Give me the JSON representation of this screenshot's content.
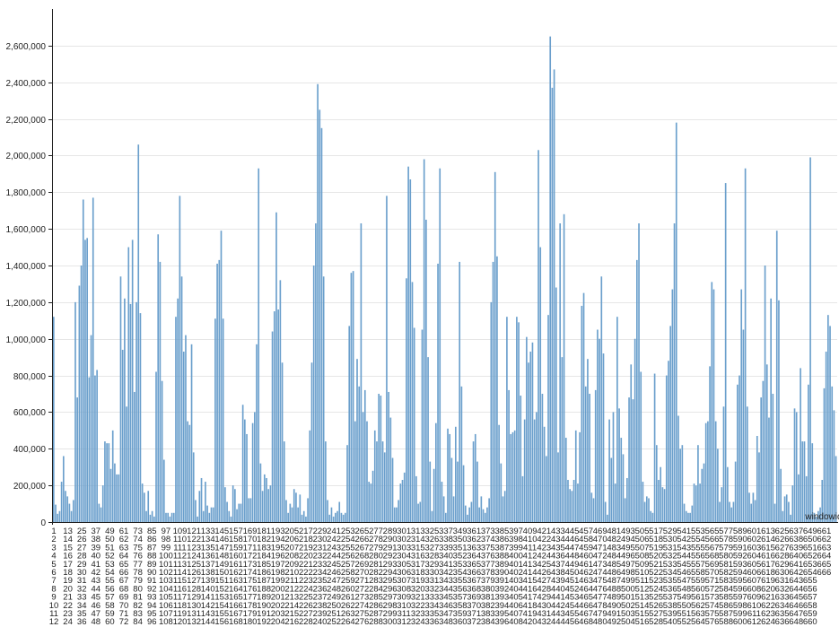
{
  "chart_data": {
    "type": "bar",
    "xlabel": "windowid",
    "ylabel": "",
    "title": "",
    "ylim": [
      0,
      2800000
    ],
    "yticks": [
      0,
      200000,
      400000,
      600000,
      800000,
      1000000,
      1200000,
      1400000,
      1600000,
      1800000,
      2000000,
      2200000,
      2400000,
      2600000
    ],
    "ytick_labels": [
      "0",
      "200,000",
      "400,000",
      "600,000",
      "800,000",
      "1,000,000",
      "1,200,000",
      "1,400,000",
      "1,600,000",
      "1,800,000",
      "2,000,000",
      "2,200,000",
      "2,400,000",
      "2,600,000"
    ],
    "grid": true,
    "bar_color": "#6a9fcc",
    "x_start": 1,
    "x_end": 666,
    "label_rows": 12,
    "values": [
      1120000,
      95000,
      45000,
      60000,
      220000,
      360000,
      170000,
      140000,
      100000,
      60000,
      120000,
      1200000,
      680000,
      1290000,
      1400000,
      1760000,
      1540000,
      1550000,
      790000,
      1020000,
      1770000,
      800000,
      830000,
      100000,
      80000,
      200000,
      440000,
      430000,
      430000,
      290000,
      500000,
      320000,
      260000,
      260000,
      1340000,
      940000,
      1220000,
      630000,
      1500000,
      1190000,
      1540000,
      710000,
      1200000,
      2060000,
      1140000,
      210000,
      160000,
      60000,
      170000,
      40000,
      60000,
      30000,
      820000,
      1570000,
      1420000,
      770000,
      340000,
      50000,
      50000,
      30000,
      50000,
      50000,
      1120000,
      1220000,
      1780000,
      1340000,
      930000,
      1020000,
      550000,
      530000,
      970000,
      380000,
      120000,
      30000,
      170000,
      240000,
      60000,
      220000,
      90000,
      50000,
      80000,
      80000,
      1110000,
      1410000,
      1430000,
      1590000,
      1110000,
      190000,
      110000,
      60000,
      30000,
      200000,
      180000,
      70000,
      100000,
      100000,
      640000,
      560000,
      480000,
      130000,
      130000,
      540000,
      600000,
      970000,
      1930000,
      320000,
      170000,
      260000,
      240000,
      180000,
      200000,
      1040000,
      1150000,
      1690000,
      1160000,
      1320000,
      870000,
      440000,
      120000,
      50000,
      100000,
      80000,
      180000,
      160000,
      80000,
      150000,
      40000,
      60000,
      30000,
      130000,
      500000,
      870000,
      1400000,
      1630000,
      2390000,
      2250000,
      2150000,
      1340000,
      440000,
      120000,
      40000,
      80000,
      30000,
      50000,
      60000,
      110000,
      50000,
      40000,
      50000,
      420000,
      1070000,
      1360000,
      1370000,
      550000,
      890000,
      740000,
      1630000,
      600000,
      720000,
      550000,
      220000,
      210000,
      280000,
      500000,
      440000,
      700000,
      690000,
      440000,
      380000,
      1780000,
      710000,
      570000,
      350000,
      80000,
      80000,
      120000,
      210000,
      230000,
      270000,
      1330000,
      1940000,
      1870000,
      1310000,
      1060000,
      250000,
      100000,
      110000,
      1050000,
      1980000,
      1650000,
      900000,
      330000,
      60000,
      290000,
      540000,
      1410000,
      1930000,
      220000,
      140000,
      50000,
      510000,
      480000,
      350000,
      140000,
      520000,
      330000,
      1420000,
      740000,
      310000,
      90000,
      40000,
      80000,
      110000,
      440000,
      480000,
      330000,
      80000,
      140000,
      70000,
      50000,
      80000,
      130000,
      1200000,
      1420000,
      1910000,
      1450000,
      530000,
      320000,
      140000,
      170000,
      1120000,
      720000,
      480000,
      490000,
      500000,
      1120000,
      1090000,
      690000,
      250000,
      560000,
      1010000,
      870000,
      930000,
      980000,
      560000,
      600000,
      2030000,
      1500000,
      700000,
      520000,
      360000,
      1130000,
      2650000,
      2370000,
      2470000,
      1280000,
      380000,
      1630000,
      900000,
      1680000,
      460000,
      230000,
      180000,
      170000,
      230000,
      500000,
      210000,
      490000,
      1180000,
      1250000,
      740000,
      890000,
      700000,
      160000,
      130000,
      720000,
      1050000,
      1000000,
      1340000,
      920000,
      110000,
      40000,
      560000,
      350000,
      600000,
      210000,
      1120000,
      620000,
      460000,
      370000,
      130000,
      240000,
      680000,
      860000,
      670000,
      1000000,
      1430000,
      1630000,
      820000,
      220000,
      110000,
      140000,
      130000,
      60000,
      50000,
      810000,
      420000,
      230000,
      300000,
      190000,
      180000,
      800000,
      880000,
      1070000,
      1270000,
      1630000,
      2180000,
      580000,
      400000,
      420000,
      100000,
      60000,
      50000,
      50000,
      90000,
      210000,
      200000,
      420000,
      210000,
      290000,
      320000,
      540000,
      550000,
      850000,
      1310000,
      1270000,
      550000,
      400000,
      110000,
      190000,
      630000,
      1850000,
      300000,
      110000,
      80000,
      110000,
      330000,
      750000,
      800000,
      1270000,
      1050000,
      1930000,
      630000,
      160000,
      100000,
      160000,
      120000,
      470000,
      380000,
      680000,
      770000,
      1400000,
      860000,
      570000,
      1220000,
      700000,
      100000,
      1590000,
      1210000,
      290000,
      60000,
      140000,
      150000,
      110000,
      40000,
      200000,
      620000,
      600000,
      260000,
      840000,
      440000,
      440000,
      250000,
      750000,
      1990000,
      430000,
      50000,
      30000,
      60000,
      80000,
      230000,
      730000,
      930000,
      1130000,
      1070000,
      740000,
      610000,
      360000
    ]
  }
}
